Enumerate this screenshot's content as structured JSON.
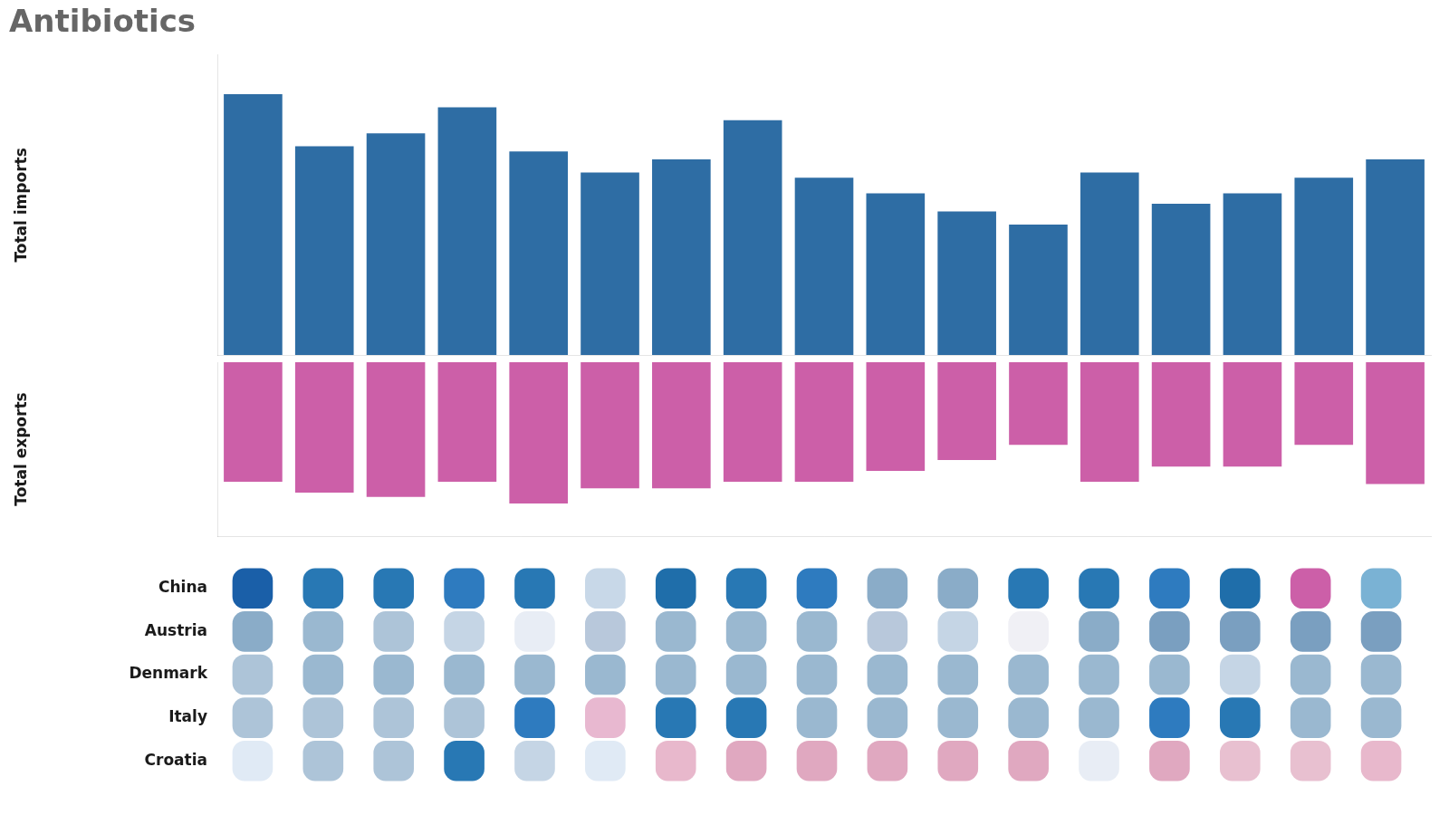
{
  "chart_data": [
    {
      "type": "bar",
      "title": "Antibiotics",
      "categories": [
        null,
        null,
        null,
        null,
        null,
        null,
        null,
        null,
        null,
        null,
        null,
        null,
        null,
        null,
        null,
        null,
        null
      ],
      "series": [
        {
          "name": "Total imports",
          "color": "#2e6da4",
          "values": [
            100,
            80,
            85,
            95,
            78,
            70,
            75,
            90,
            68,
            62,
            55,
            50,
            70,
            58,
            62,
            68,
            75
          ]
        }
      ],
      "ylim": [
        0,
        115
      ],
      "grid": false,
      "tick_labels": false
    },
    {
      "type": "bar",
      "categories": [
        null,
        null,
        null,
        null,
        null,
        null,
        null,
        null,
        null,
        null,
        null,
        null,
        null,
        null,
        null,
        null,
        null
      ],
      "series": [
        {
          "name": "Total exports",
          "color": "#cc5fa8",
          "values": [
            55,
            60,
            62,
            55,
            65,
            58,
            58,
            55,
            55,
            50,
            45,
            38,
            55,
            48,
            48,
            38,
            56
          ]
        }
      ],
      "ylim": [
        80,
        0
      ],
      "grid": false,
      "tick_labels": false
    },
    {
      "type": "heatmap",
      "categories": [
        null,
        null,
        null,
        null,
        null,
        null,
        null,
        null,
        null,
        null,
        null,
        null,
        null,
        null,
        null,
        null,
        null
      ],
      "series": [
        {
          "name": "China",
          "colors": [
            "#1a5fa8",
            "#2878b4",
            "#2878b4",
            "#2e7bbf",
            "#2878b4",
            "#c8d8e8",
            "#1f6eaa",
            "#2878b4",
            "#2e7bbf",
            "#8aacc8",
            "#8aacc8",
            "#2878b4",
            "#2878b4",
            "#2e7bbf",
            "#1f6eaa",
            "#cc5fa8",
            "#7ab2d4"
          ]
        },
        {
          "name": "Austria",
          "colors": [
            "#8aacc8",
            "#9ab8d0",
            "#adc4d8",
            "#c5d5e5",
            "#e8edf5",
            "#b8c8db",
            "#9ab8d0",
            "#9ab8d0",
            "#9ab8d0",
            "#b8c8db",
            "#c5d5e5",
            "#f0f0f5",
            "#8aacc8",
            "#7a9fc0",
            "#7a9fc0",
            "#7a9fc0",
            "#7a9fc0"
          ]
        },
        {
          "name": "Denmark",
          "colors": [
            "#adc4d8",
            "#9ab8d0",
            "#9ab8d0",
            "#9ab8d0",
            "#9ab8d0",
            "#9ab8d0",
            "#9ab8d0",
            "#9ab8d0",
            "#9ab8d0",
            "#9ab8d0",
            "#9ab8d0",
            "#9ab8d0",
            "#9ab8d0",
            "#9ab8d0",
            "#c5d5e5",
            "#9ab8d0",
            "#9ab8d0"
          ]
        },
        {
          "name": "Italy",
          "colors": [
            "#adc4d8",
            "#adc4d8",
            "#adc4d8",
            "#adc4d8",
            "#2e7bbf",
            "#e8b8d0",
            "#2878b4",
            "#2878b4",
            "#9ab8d0",
            "#9ab8d0",
            "#9ab8d0",
            "#9ab8d0",
            "#9ab8d0",
            "#2e7bbf",
            "#2878b4",
            "#9ab8d0",
            "#9ab8d0"
          ]
        },
        {
          "name": "Croatia",
          "colors": [
            "#e0eaf5",
            "#adc4d8",
            "#adc4d8",
            "#2878b4",
            "#c5d5e5",
            "#e0eaf5",
            "#e8b8cc",
            "#e0a8c0",
            "#e0a8c0",
            "#e0a8c0",
            "#e0a8c0",
            "#e0a8c0",
            "#e8edf5",
            "#e0a8c0",
            "#e8c0d0",
            "#e8c0d0",
            "#e8b8cc"
          ]
        }
      ],
      "grid": false,
      "tick_labels": "y"
    }
  ]
}
